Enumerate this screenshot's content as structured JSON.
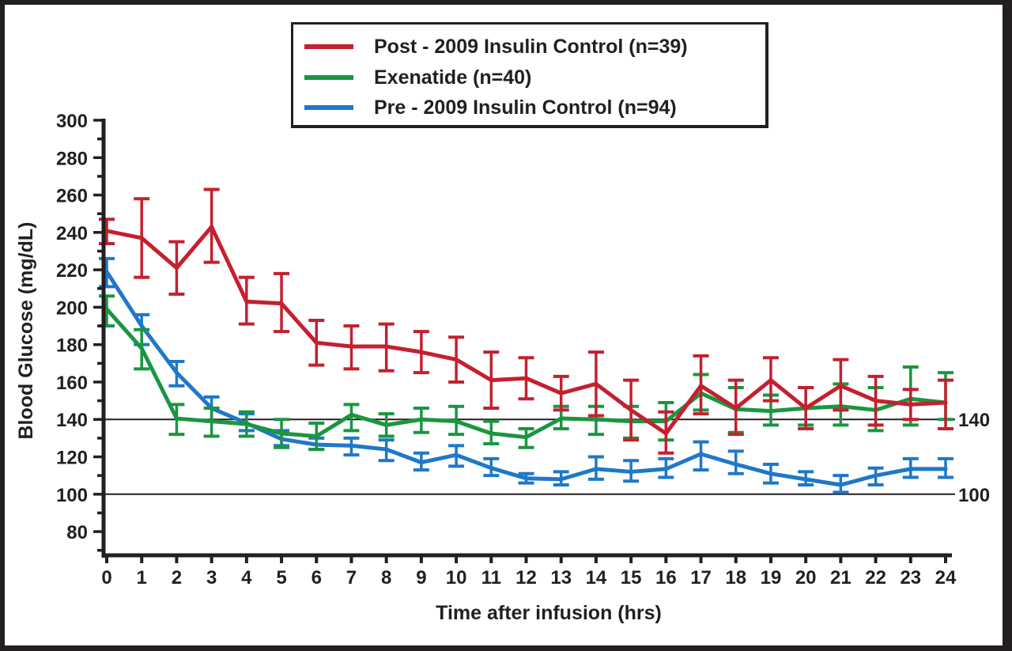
{
  "chart_data": {
    "type": "line",
    "title": "",
    "xlabel": "Time after infusion (hrs)",
    "ylabel": "Blood Glucose (mg/dL)",
    "x": [
      0,
      1,
      2,
      3,
      4,
      5,
      6,
      7,
      8,
      9,
      10,
      11,
      12,
      13,
      14,
      15,
      16,
      17,
      18,
      19,
      20,
      21,
      22,
      23,
      24
    ],
    "xlim": [
      0,
      24
    ],
    "ylim": [
      70,
      300
    ],
    "yticks": [
      80,
      100,
      120,
      140,
      160,
      180,
      200,
      220,
      240,
      260,
      280,
      300
    ],
    "grid": false,
    "reference_lines": [
      {
        "value": 140,
        "label": "140"
      },
      {
        "value": 100,
        "label": "100"
      }
    ],
    "legend_position": "top-center",
    "series": [
      {
        "name": "Post - 2009 Insulin Control (n=39)",
        "color": "#c4202f",
        "values": [
          240.8,
          237,
          221,
          243,
          203,
          202,
          181,
          179,
          179,
          176,
          172,
          161,
          162,
          154,
          159,
          145,
          132.5,
          158,
          146,
          161,
          146,
          158,
          150,
          148,
          149
        ],
        "error_low": [
          234,
          216,
          207,
          224,
          191,
          187,
          169,
          167,
          166,
          165,
          160,
          146,
          151,
          145,
          142,
          129,
          122,
          143,
          132,
          150,
          135,
          145,
          137,
          140,
          135
        ],
        "error_high": [
          247,
          258,
          235,
          263,
          216,
          218,
          193,
          190,
          191,
          187,
          184,
          176,
          173,
          163,
          176,
          161,
          144,
          174,
          161,
          173,
          157,
          172,
          163,
          156,
          161
        ]
      },
      {
        "name": "Exenatide (n=40)",
        "color": "#1a9641",
        "values": [
          199,
          178,
          140.5,
          139,
          137.5,
          132.5,
          131,
          142.5,
          137,
          140,
          139,
          132.5,
          130.5,
          140.5,
          140,
          139,
          139,
          154,
          145.5,
          144.5,
          146,
          147,
          145,
          151,
          149
        ],
        "error_low": [
          190,
          167,
          132,
          131,
          131,
          125,
          124,
          134,
          131,
          133,
          132,
          127,
          125,
          135,
          132,
          130,
          129,
          145,
          133,
          137,
          137,
          137,
          134,
          137,
          140
        ],
        "error_high": [
          206,
          188,
          148,
          146,
          144,
          140,
          138,
          148,
          143,
          146,
          147,
          139,
          135,
          147,
          147,
          147,
          149,
          164,
          157,
          153,
          157,
          159,
          157,
          168,
          165
        ]
      },
      {
        "name": "Pre - 2009 Insulin Control (n=94)",
        "color": "#1f78c8",
        "values": [
          219,
          190,
          165,
          146,
          138,
          129.5,
          126.5,
          126,
          124,
          117,
          121,
          114,
          108.5,
          108,
          113.5,
          112,
          113.5,
          121.5,
          116,
          111,
          108,
          105,
          110,
          113.5,
          113.5
        ],
        "error_low": [
          211,
          180,
          158,
          139,
          134,
          126,
          124,
          121,
          118,
          113,
          115,
          110,
          106,
          105,
          108,
          107,
          109,
          113,
          111,
          106,
          105,
          101,
          105,
          109,
          109
        ],
        "error_high": [
          226,
          196,
          171,
          152,
          143,
          134,
          130,
          130,
          129,
          122,
          126,
          119,
          111,
          112,
          120,
          118,
          119,
          128,
          123,
          116,
          112,
          110,
          114,
          119,
          119
        ]
      }
    ]
  }
}
